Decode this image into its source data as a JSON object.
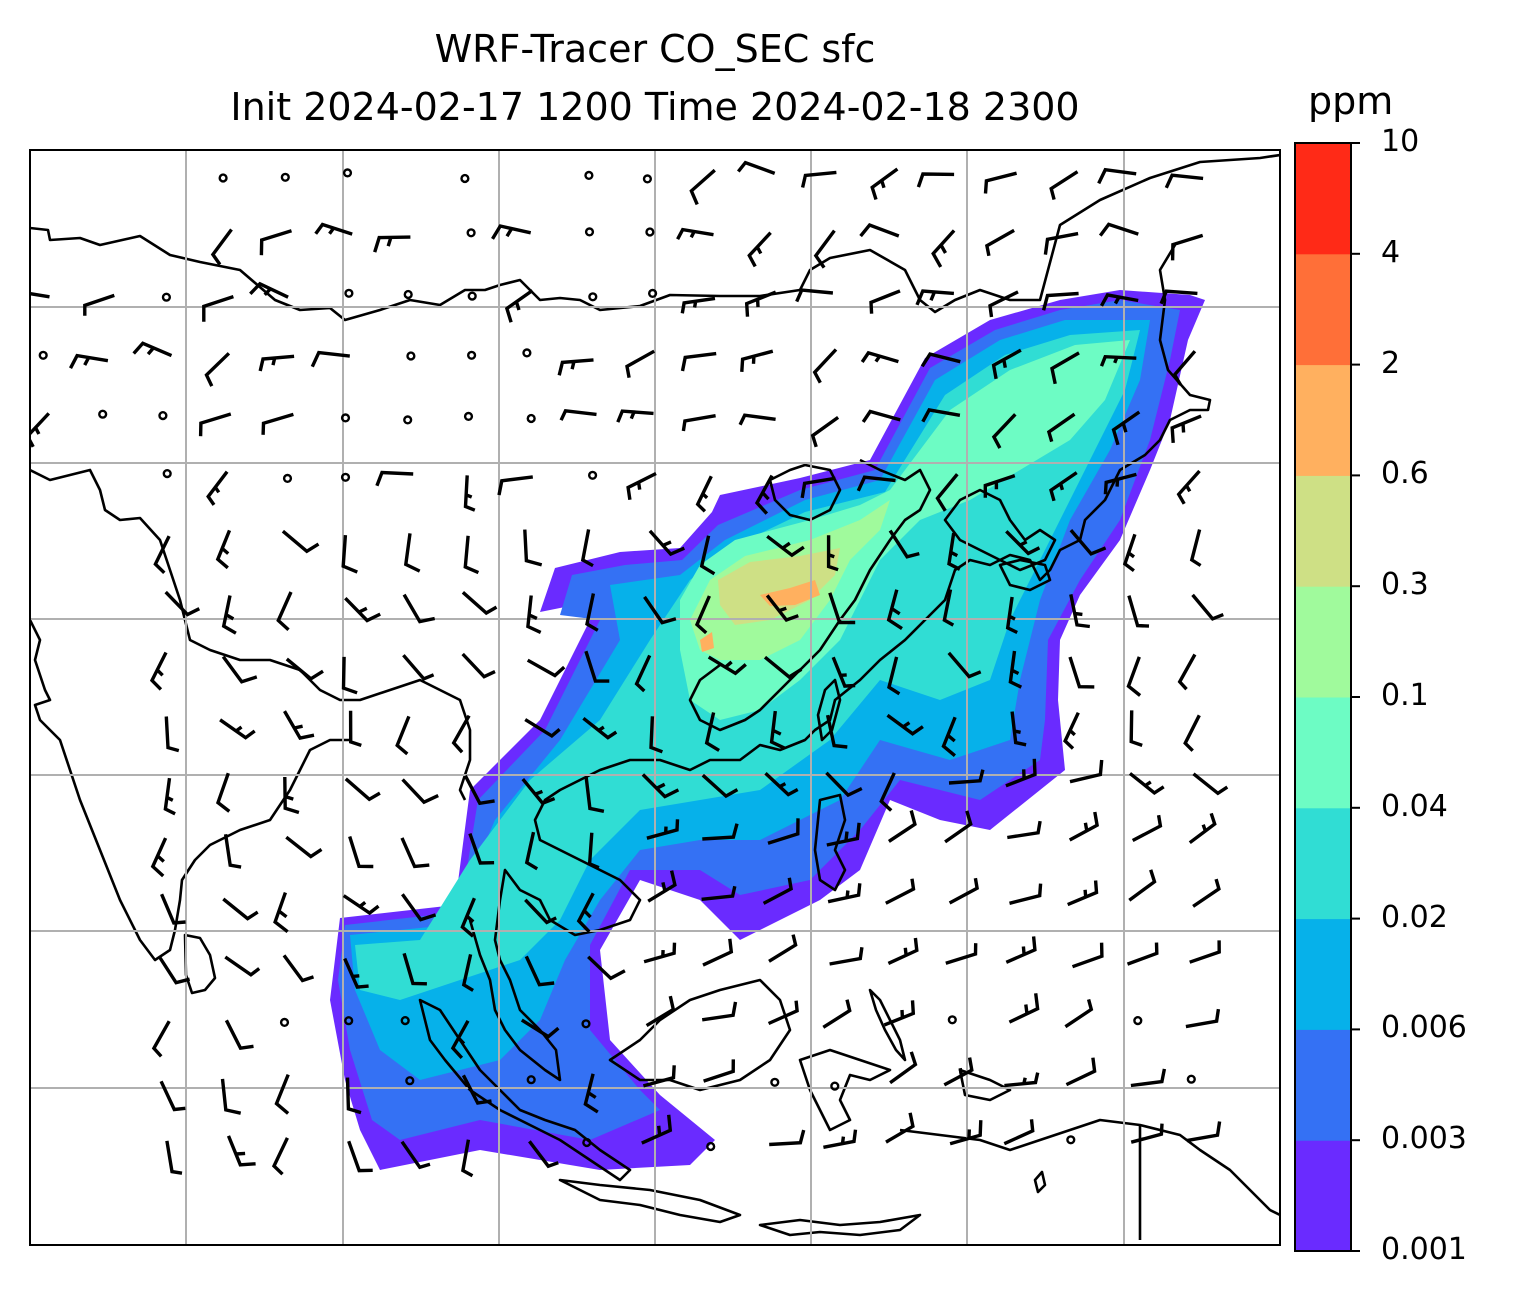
{
  "title_line1": "WRF-Tracer CO_SEC sfc",
  "title_line2": "Init 2024-02-17 1200 Time 2024-02-18 2300",
  "colorbar": {
    "units": "ppm",
    "ticks": [
      "0.001",
      "0.003",
      "0.006",
      "0.02",
      "0.04",
      "0.1",
      "0.3",
      "0.6",
      "2",
      "4",
      "10"
    ],
    "colors": [
      "#6a2bff",
      "#3471f4",
      "#06b1ea",
      "#30ddd4",
      "#6dfcc4",
      "#a0fa9c",
      "#cee085",
      "#ffb05f",
      "#ff6f38",
      "#ff2a17"
    ]
  },
  "map": {
    "gridlines": true,
    "wind_barbs": true,
    "coastlines": true
  }
}
